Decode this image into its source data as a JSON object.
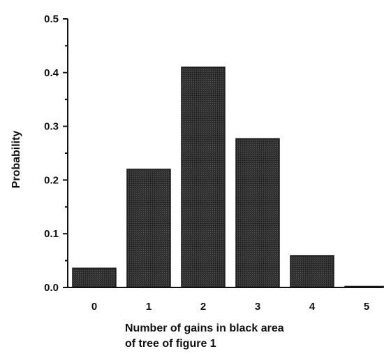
{
  "chart_data": {
    "type": "bar",
    "title": "",
    "categories": [
      "0",
      "1",
      "2",
      "3",
      "4",
      "5"
    ],
    "values": [
      0.036,
      0.22,
      0.41,
      0.277,
      0.059,
      0.002
    ],
    "xlabel_lines": [
      "Number of gains in black area",
      "of tree of figure 1"
    ],
    "ylabel": "Probability",
    "ylim": [
      0.0,
      0.5
    ],
    "yticks": [
      "0.0",
      "0.1",
      "0.2",
      "0.3",
      "0.4",
      "0.5"
    ],
    "grid": false,
    "colors": {
      "bar": "#2c2c2c",
      "axis": "#111111"
    }
  }
}
